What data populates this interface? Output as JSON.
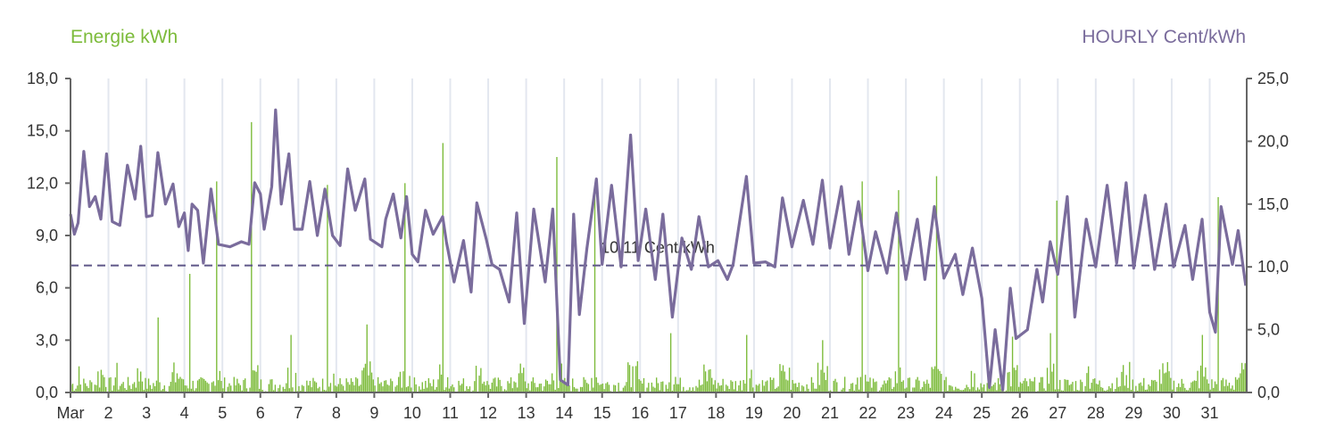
{
  "chart_data": {
    "type": "bar+line",
    "left_axis_label": "Energie kWh",
    "right_axis_label": "HOURLY Cent/kWh",
    "left_ylim": [
      0,
      18
    ],
    "left_ticks": [
      "0,0",
      "3,0",
      "6,0",
      "9,0",
      "12,0",
      "15,0",
      "18,0"
    ],
    "right_ylim": [
      0,
      25
    ],
    "right_ticks": [
      "0,0",
      "5,0",
      "10,0",
      "15,0",
      "20,0",
      "25,0"
    ],
    "x_tick_labels": [
      "Mar",
      "2",
      "3",
      "4",
      "5",
      "6",
      "7",
      "8",
      "9",
      "10",
      "11",
      "12",
      "13",
      "14",
      "15",
      "16",
      "17",
      "18",
      "19",
      "20",
      "21",
      "22",
      "23",
      "24",
      "25",
      "26",
      "27",
      "28",
      "29",
      "30",
      "31"
    ],
    "average_line": {
      "value": 10.11,
      "label": "10,11 Cent/kWh"
    },
    "series": [
      {
        "name": "Energie kWh",
        "kind": "bar",
        "color": "#7cbb3a",
        "daily_peaks": [
          {
            "day": 1,
            "hour": 5,
            "value": 1.5
          },
          {
            "day": 1,
            "hour": 19,
            "value": 1.3
          },
          {
            "day": 2,
            "hour": 5,
            "value": 1.7
          },
          {
            "day": 2,
            "hour": 20,
            "value": 1.2
          },
          {
            "day": 3,
            "hour": 7,
            "value": 4.3
          },
          {
            "day": 3,
            "hour": 19,
            "value": 1.1
          },
          {
            "day": 4,
            "hour": 3,
            "value": 6.8
          },
          {
            "day": 4,
            "hour": 20,
            "value": 12.1
          },
          {
            "day": 5,
            "hour": 18,
            "value": 15.5
          },
          {
            "day": 6,
            "hour": 19,
            "value": 3.3
          },
          {
            "day": 7,
            "hour": 18,
            "value": 11.9
          },
          {
            "day": 8,
            "hour": 19,
            "value": 3.9
          },
          {
            "day": 9,
            "hour": 19,
            "value": 12.0
          },
          {
            "day": 10,
            "hour": 19,
            "value": 14.3
          },
          {
            "day": 11,
            "hour": 19,
            "value": 1.4
          },
          {
            "day": 12,
            "hour": 19,
            "value": 1.1
          },
          {
            "day": 13,
            "hour": 19,
            "value": 13.5
          },
          {
            "day": 14,
            "hour": 19,
            "value": 11.4
          },
          {
            "day": 15,
            "hour": 19,
            "value": 1.5
          },
          {
            "day": 16,
            "hour": 19,
            "value": 3.4
          },
          {
            "day": 17,
            "hour": 19,
            "value": 1.3
          },
          {
            "day": 18,
            "hour": 19,
            "value": 3.3
          },
          {
            "day": 19,
            "hour": 19,
            "value": 1.2
          },
          {
            "day": 20,
            "hour": 19,
            "value": 3.0
          },
          {
            "day": 21,
            "hour": 20,
            "value": 12.1
          },
          {
            "day": 22,
            "hour": 19,
            "value": 11.6
          },
          {
            "day": 23,
            "hour": 19,
            "value": 12.4
          },
          {
            "day": 24,
            "hour": 19,
            "value": 1.1
          },
          {
            "day": 25,
            "hour": 19,
            "value": 3.2
          },
          {
            "day": 26,
            "hour": 19,
            "value": 3.4
          },
          {
            "day": 26,
            "hour": 23,
            "value": 11.0
          },
          {
            "day": 27,
            "hour": 19,
            "value": 1.5
          },
          {
            "day": 28,
            "hour": 19,
            "value": 1.0
          },
          {
            "day": 29,
            "hour": 19,
            "value": 1.1
          },
          {
            "day": 30,
            "hour": 19,
            "value": 3.3
          },
          {
            "day": 31,
            "hour": 5,
            "value": 11.2
          },
          {
            "day": 31,
            "hour": 19,
            "value": 1.1
          }
        ]
      },
      {
        "name": "HOURLY Cent/kWh",
        "kind": "line",
        "color": "#7a6c9c",
        "points": [
          {
            "day": 1.0,
            "value": 14.2
          },
          {
            "day": 1.1,
            "value": 12.6
          },
          {
            "day": 1.2,
            "value": 13.5
          },
          {
            "day": 1.35,
            "value": 19.2
          },
          {
            "day": 1.5,
            "value": 14.8
          },
          {
            "day": 1.65,
            "value": 15.6
          },
          {
            "day": 1.8,
            "value": 13.8
          },
          {
            "day": 1.95,
            "value": 19.0
          },
          {
            "day": 2.1,
            "value": 13.6
          },
          {
            "day": 2.3,
            "value": 13.3
          },
          {
            "day": 2.5,
            "value": 18.1
          },
          {
            "day": 2.7,
            "value": 15.4
          },
          {
            "day": 2.85,
            "value": 19.6
          },
          {
            "day": 3.0,
            "value": 14.0
          },
          {
            "day": 3.15,
            "value": 14.1
          },
          {
            "day": 3.3,
            "value": 19.1
          },
          {
            "day": 3.5,
            "value": 15.0
          },
          {
            "day": 3.7,
            "value": 16.6
          },
          {
            "day": 3.85,
            "value": 13.2
          },
          {
            "day": 4.0,
            "value": 14.3
          },
          {
            "day": 4.1,
            "value": 11.3
          },
          {
            "day": 4.2,
            "value": 15.0
          },
          {
            "day": 4.35,
            "value": 14.5
          },
          {
            "day": 4.5,
            "value": 10.3
          },
          {
            "day": 4.7,
            "value": 16.2
          },
          {
            "day": 4.9,
            "value": 11.8
          },
          {
            "day": 5.2,
            "value": 11.6
          },
          {
            "day": 5.5,
            "value": 12.0
          },
          {
            "day": 5.7,
            "value": 11.8
          },
          {
            "day": 5.85,
            "value": 16.7
          },
          {
            "day": 6.0,
            "value": 15.8
          },
          {
            "day": 6.1,
            "value": 13.0
          },
          {
            "day": 6.3,
            "value": 16.4
          },
          {
            "day": 6.4,
            "value": 22.5
          },
          {
            "day": 6.55,
            "value": 15.0
          },
          {
            "day": 6.75,
            "value": 19.0
          },
          {
            "day": 6.9,
            "value": 13.0
          },
          {
            "day": 7.1,
            "value": 13.0
          },
          {
            "day": 7.3,
            "value": 16.8
          },
          {
            "day": 7.5,
            "value": 12.5
          },
          {
            "day": 7.7,
            "value": 16.2
          },
          {
            "day": 7.9,
            "value": 12.5
          },
          {
            "day": 8.1,
            "value": 11.7
          },
          {
            "day": 8.3,
            "value": 17.8
          },
          {
            "day": 8.5,
            "value": 14.5
          },
          {
            "day": 8.75,
            "value": 17.0
          },
          {
            "day": 8.9,
            "value": 12.2
          },
          {
            "day": 9.2,
            "value": 11.6
          },
          {
            "day": 9.3,
            "value": 13.8
          },
          {
            "day": 9.5,
            "value": 15.8
          },
          {
            "day": 9.7,
            "value": 12.3
          },
          {
            "day": 9.85,
            "value": 15.6
          },
          {
            "day": 10.0,
            "value": 11.0
          },
          {
            "day": 10.15,
            "value": 10.4
          },
          {
            "day": 10.35,
            "value": 14.5
          },
          {
            "day": 10.55,
            "value": 12.6
          },
          {
            "day": 10.8,
            "value": 14.0
          },
          {
            "day": 10.9,
            "value": 12.0
          },
          {
            "day": 11.1,
            "value": 8.8
          },
          {
            "day": 11.35,
            "value": 12.1
          },
          {
            "day": 11.55,
            "value": 8.0
          },
          {
            "day": 11.7,
            "value": 15.1
          },
          {
            "day": 11.95,
            "value": 12.2
          },
          {
            "day": 12.1,
            "value": 10.2
          },
          {
            "day": 12.3,
            "value": 9.8
          },
          {
            "day": 12.55,
            "value": 7.2
          },
          {
            "day": 12.75,
            "value": 14.3
          },
          {
            "day": 12.95,
            "value": 5.5
          },
          {
            "day": 13.2,
            "value": 14.6
          },
          {
            "day": 13.5,
            "value": 8.8
          },
          {
            "day": 13.7,
            "value": 14.6
          },
          {
            "day": 13.9,
            "value": 1.0
          },
          {
            "day": 14.1,
            "value": 0.6
          },
          {
            "day": 14.25,
            "value": 14.2
          },
          {
            "day": 14.4,
            "value": 6.2
          },
          {
            "day": 14.6,
            "value": 11.5
          },
          {
            "day": 14.85,
            "value": 17.0
          },
          {
            "day": 15.0,
            "value": 10.2
          },
          {
            "day": 15.25,
            "value": 16.5
          },
          {
            "day": 15.5,
            "value": 10.0
          },
          {
            "day": 15.75,
            "value": 20.5
          },
          {
            "day": 15.95,
            "value": 10.5
          },
          {
            "day": 16.15,
            "value": 14.6
          },
          {
            "day": 16.4,
            "value": 9.0
          },
          {
            "day": 16.6,
            "value": 14.2
          },
          {
            "day": 16.85,
            "value": 6.0
          },
          {
            "day": 17.1,
            "value": 12.3
          },
          {
            "day": 17.35,
            "value": 9.8
          },
          {
            "day": 17.55,
            "value": 14.0
          },
          {
            "day": 17.8,
            "value": 10.0
          },
          {
            "day": 18.05,
            "value": 10.5
          },
          {
            "day": 18.3,
            "value": 9.0
          },
          {
            "day": 18.45,
            "value": 10.2
          },
          {
            "day": 18.8,
            "value": 17.2
          },
          {
            "day": 19.0,
            "value": 10.3
          },
          {
            "day": 19.3,
            "value": 10.4
          },
          {
            "day": 19.55,
            "value": 10.0
          },
          {
            "day": 19.75,
            "value": 15.5
          },
          {
            "day": 20.0,
            "value": 11.6
          },
          {
            "day": 20.3,
            "value": 15.3
          },
          {
            "day": 20.55,
            "value": 11.8
          },
          {
            "day": 20.8,
            "value": 16.9
          },
          {
            "day": 21.0,
            "value": 11.5
          },
          {
            "day": 21.3,
            "value": 16.4
          },
          {
            "day": 21.5,
            "value": 11.0
          },
          {
            "day": 21.75,
            "value": 15.2
          },
          {
            "day": 22.0,
            "value": 9.7
          },
          {
            "day": 22.2,
            "value": 12.8
          },
          {
            "day": 22.5,
            "value": 9.5
          },
          {
            "day": 22.75,
            "value": 14.3
          },
          {
            "day": 23.0,
            "value": 9.0
          },
          {
            "day": 23.3,
            "value": 13.8
          },
          {
            "day": 23.5,
            "value": 9.0
          },
          {
            "day": 23.75,
            "value": 14.8
          },
          {
            "day": 24.0,
            "value": 9.1
          },
          {
            "day": 24.3,
            "value": 11.0
          },
          {
            "day": 24.5,
            "value": 7.8
          },
          {
            "day": 24.75,
            "value": 11.5
          },
          {
            "day": 25.0,
            "value": 7.5
          },
          {
            "day": 25.2,
            "value": 0.4
          },
          {
            "day": 25.35,
            "value": 5.0
          },
          {
            "day": 25.55,
            "value": 0.2
          },
          {
            "day": 25.75,
            "value": 8.3
          },
          {
            "day": 25.9,
            "value": 4.3
          },
          {
            "day": 26.2,
            "value": 5.0
          },
          {
            "day": 26.45,
            "value": 9.8
          },
          {
            "day": 26.6,
            "value": 7.2
          },
          {
            "day": 26.8,
            "value": 12.0
          },
          {
            "day": 27.0,
            "value": 9.4
          },
          {
            "day": 27.25,
            "value": 15.6
          },
          {
            "day": 27.45,
            "value": 6.0
          },
          {
            "day": 27.75,
            "value": 13.8
          },
          {
            "day": 28.0,
            "value": 10.0
          },
          {
            "day": 28.3,
            "value": 16.5
          },
          {
            "day": 28.55,
            "value": 10.3
          },
          {
            "day": 28.8,
            "value": 16.7
          },
          {
            "day": 29.0,
            "value": 9.9
          },
          {
            "day": 29.3,
            "value": 15.7
          },
          {
            "day": 29.55,
            "value": 9.8
          },
          {
            "day": 29.85,
            "value": 15.0
          },
          {
            "day": 30.05,
            "value": 10.0
          },
          {
            "day": 30.35,
            "value": 13.3
          },
          {
            "day": 30.55,
            "value": 9.0
          },
          {
            "day": 30.8,
            "value": 13.8
          },
          {
            "day": 31.0,
            "value": 6.4
          },
          {
            "day": 31.15,
            "value": 4.8
          },
          {
            "day": 31.3,
            "value": 14.8
          },
          {
            "day": 31.6,
            "value": 10.2
          },
          {
            "day": 31.75,
            "value": 12.9
          },
          {
            "day": 31.95,
            "value": 8.5
          }
        ]
      }
    ]
  }
}
